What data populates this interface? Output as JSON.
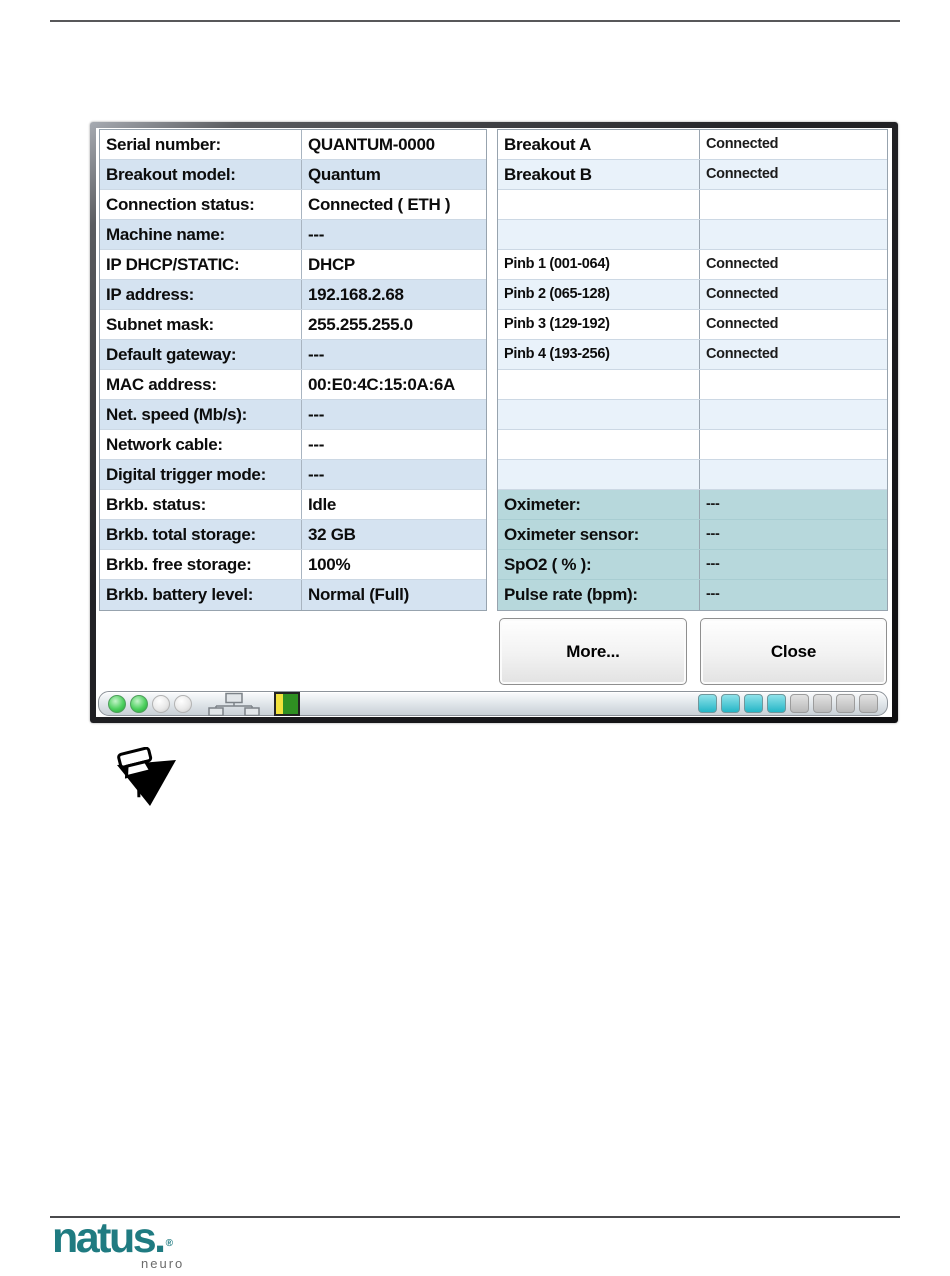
{
  "page": {
    "type": "manual-page",
    "top_rule": true,
    "footer_rule": true
  },
  "dialog": {
    "name": "Amplifier status dialog",
    "left_table": {
      "rows": [
        {
          "label": "Serial number:",
          "value": "QUANTUM-0000"
        },
        {
          "label": "Breakout model:",
          "value": "Quantum"
        },
        {
          "label": "Connection status:",
          "value": "Connected ( ETH )"
        },
        {
          "label": "Machine name:",
          "value": "---"
        },
        {
          "label": "IP DHCP/STATIC:",
          "value": "DHCP"
        },
        {
          "label": "IP address:",
          "value": "192.168.2.68"
        },
        {
          "label": "Subnet mask:",
          "value": "255.255.255.0"
        },
        {
          "label": "Default gateway:",
          "value": "---"
        },
        {
          "label": "MAC address:",
          "value": "00:E0:4C:15:0A:6A"
        },
        {
          "label": "Net. speed (Mb/s):",
          "value": "---"
        },
        {
          "label": "Network cable:",
          "value": "---"
        },
        {
          "label": "Digital trigger mode:",
          "value": "---"
        },
        {
          "label": "Brkb. status:",
          "value": "Idle"
        },
        {
          "label": "Brkb. total storage:",
          "value": "32 GB"
        },
        {
          "label": "Brkb. free storage:",
          "value": "100%"
        },
        {
          "label": "Brkb. battery level:",
          "value": "Normal (Full)"
        }
      ]
    },
    "right_table": {
      "rows": [
        {
          "label": "Breakout A",
          "value": "Connected",
          "style": "breakout"
        },
        {
          "label": "Breakout B",
          "value": "Connected",
          "style": "breakout"
        },
        {
          "label": "",
          "value": "",
          "style": "empty"
        },
        {
          "label": "",
          "value": "",
          "style": "empty"
        },
        {
          "label": "Pinb 1 (001-064)",
          "value": "Connected",
          "style": "pinb"
        },
        {
          "label": "Pinb 2 (065-128)",
          "value": "Connected",
          "style": "pinb"
        },
        {
          "label": "Pinb 3 (129-192)",
          "value": "Connected",
          "style": "pinb"
        },
        {
          "label": "Pinb 4 (193-256)",
          "value": "Connected",
          "style": "pinb"
        },
        {
          "label": "",
          "value": "",
          "style": "empty"
        },
        {
          "label": "",
          "value": "",
          "style": "empty"
        },
        {
          "label": "",
          "value": "",
          "style": "empty"
        },
        {
          "label": "",
          "value": "",
          "style": "empty"
        },
        {
          "label": "Oximeter:",
          "value": "---",
          "style": "oximeter"
        },
        {
          "label": "Oximeter sensor:",
          "value": "---",
          "style": "oximeter"
        },
        {
          "label": "SpO2 ( % ):",
          "value": "---",
          "style": "oximeter"
        },
        {
          "label": "Pulse rate (bpm):",
          "value": "---",
          "style": "oximeter"
        }
      ]
    },
    "buttons": {
      "more": "More...",
      "close": "Close"
    },
    "statusbar": {
      "leds": [
        "on",
        "on",
        "off",
        "off"
      ],
      "icons": [
        "network-icon",
        "battery-icon"
      ],
      "segments": {
        "active": 4,
        "total": 8
      }
    },
    "colors": {
      "row_alt_left": "#d5e3f1",
      "row_alt_right": "#e9f2fa",
      "oximeter_row": "#b7d8dc",
      "segment_active": "#25b6c6",
      "led_on": "#4ed05f",
      "battery_green": "#2f9022",
      "battery_yellow": "#f2e23c"
    }
  },
  "note_icon": "pushpin-note-icon",
  "footer": {
    "brand": "natus.",
    "reg": "®",
    "sub_brand": "neuro",
    "brand_color": "#1f7b81"
  }
}
